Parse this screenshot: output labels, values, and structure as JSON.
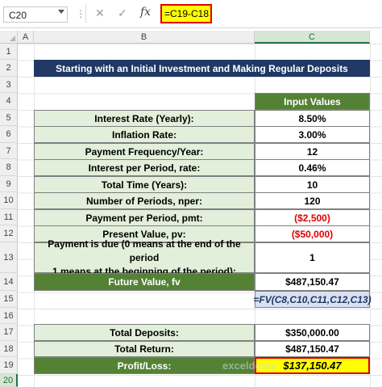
{
  "formula_bar": {
    "name_box": "C20",
    "formula": "=C19-C18"
  },
  "columns": [
    "A",
    "B",
    "C"
  ],
  "rows": [
    "1",
    "2",
    "3",
    "4",
    "5",
    "6",
    "7",
    "8",
    "9",
    "10",
    "11",
    "12",
    "13",
    "14",
    "15",
    "16",
    "17",
    "18",
    "19",
    "20"
  ],
  "sheet": {
    "title": "Starting with an Initial Investment and Making Regular Deposits",
    "input_header": "Input Values",
    "inputs": [
      {
        "label": "Interest Rate (Yearly):",
        "value": "8.50%"
      },
      {
        "label": "Inflation Rate:",
        "value": "3.00%"
      },
      {
        "label": "Payment Frequency/Year:",
        "value": "12"
      },
      {
        "label": "Interest per Period, rate:",
        "value": "0.46%"
      },
      {
        "label": "Total Time (Years):",
        "value": "10"
      },
      {
        "label": "Number of Periods, nper:",
        "value": "120"
      },
      {
        "label": "Payment per Period, pmt:",
        "value": "($2,500)"
      },
      {
        "label": "Present Value, pv:",
        "value": "($50,000)"
      }
    ],
    "payment_due_label_1": "Payment is due (0 means at the end of the period",
    "payment_due_label_2": "1 means at the beginning of the period):",
    "payment_due_value": "1",
    "future_value_label": "Future Value, fv",
    "future_value": "$487,150.47",
    "formula_text": "=FV(C8,C10,C11,C12,C13)",
    "total_deposits_label": "Total Deposits:",
    "total_deposits": "$350,000.00",
    "total_return_label": "Total Return:",
    "total_return": "$487,150.47",
    "profit_label": "Profit/Loss:",
    "profit": "$137,150.47"
  },
  "watermark": "exceldemy",
  "colors": {
    "title_bg": "#1f3864",
    "header_green": "#548235",
    "label_bg": "#e2efda",
    "highlight": "#ffff00",
    "negative_red": "#e00000"
  }
}
